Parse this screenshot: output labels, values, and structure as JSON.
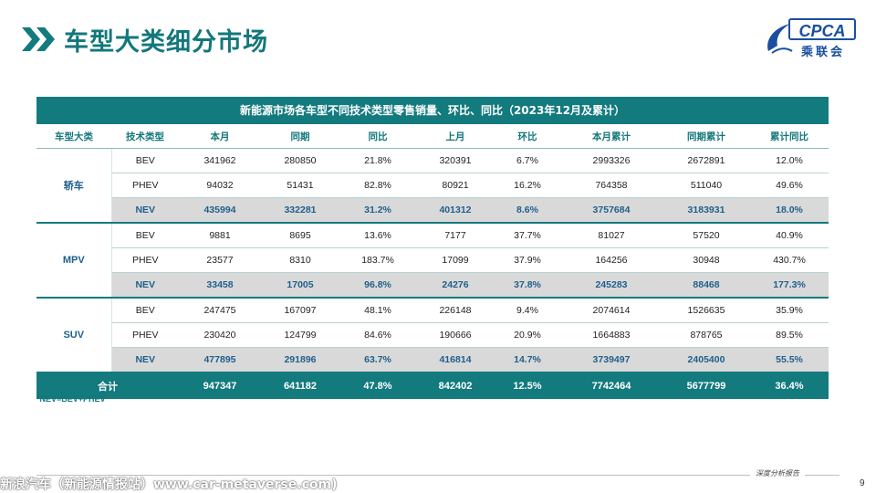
{
  "page": {
    "title": "车型大类细分市场",
    "logo_text": "CPCA",
    "logo_cn": "乘联会",
    "page_number": "9",
    "report_label": "深度分析报告",
    "watermark": "新浪汽车（新能源情报站）www.car-metaverse.com)",
    "footnote": "*NEV=BEV+PHEV"
  },
  "table": {
    "caption": "新能源市场各车型不同技术类型零售销量、环比、同比（2023年12月及累计）",
    "headers": [
      "车型大类",
      "技术类型",
      "本月",
      "同期",
      "同比",
      "上月",
      "环比",
      "本月累计",
      "同期累计",
      "累计同比"
    ],
    "groups": [
      {
        "name": "轿车",
        "rows": [
          {
            "type": "BEV",
            "cur": "341962",
            "prev_year": "280850",
            "yoy": "21.8%",
            "last_month": "320391",
            "mom": "6.7%",
            "ytd": "2993326",
            "prev_ytd": "2672891",
            "ytd_yoy": "12.0%"
          },
          {
            "type": "PHEV",
            "cur": "94032",
            "prev_year": "51431",
            "yoy": "82.8%",
            "last_month": "80921",
            "mom": "16.2%",
            "ytd": "764358",
            "prev_ytd": "511040",
            "ytd_yoy": "49.6%"
          },
          {
            "type": "NEV",
            "cur": "435994",
            "prev_year": "332281",
            "yoy": "31.2%",
            "last_month": "401312",
            "mom": "8.6%",
            "ytd": "3757684",
            "prev_ytd": "3183931",
            "ytd_yoy": "18.0%"
          }
        ]
      },
      {
        "name": "MPV",
        "rows": [
          {
            "type": "BEV",
            "cur": "9881",
            "prev_year": "8695",
            "yoy": "13.6%",
            "last_month": "7177",
            "mom": "37.7%",
            "ytd": "81027",
            "prev_ytd": "57520",
            "ytd_yoy": "40.9%"
          },
          {
            "type": "PHEV",
            "cur": "23577",
            "prev_year": "8310",
            "yoy": "183.7%",
            "last_month": "17099",
            "mom": "37.9%",
            "ytd": "164256",
            "prev_ytd": "30948",
            "ytd_yoy": "430.7%"
          },
          {
            "type": "NEV",
            "cur": "33458",
            "prev_year": "17005",
            "yoy": "96.8%",
            "last_month": "24276",
            "mom": "37.8%",
            "ytd": "245283",
            "prev_ytd": "88468",
            "ytd_yoy": "177.3%"
          }
        ]
      },
      {
        "name": "SUV",
        "rows": [
          {
            "type": "BEV",
            "cur": "247475",
            "prev_year": "167097",
            "yoy": "48.1%",
            "last_month": "226148",
            "mom": "9.4%",
            "ytd": "2074614",
            "prev_ytd": "1526635",
            "ytd_yoy": "35.9%"
          },
          {
            "type": "PHEV",
            "cur": "230420",
            "prev_year": "124799",
            "yoy": "84.6%",
            "last_month": "190666",
            "mom": "20.9%",
            "ytd": "1664883",
            "prev_ytd": "878765",
            "ytd_yoy": "89.5%"
          },
          {
            "type": "NEV",
            "cur": "477895",
            "prev_year": "291896",
            "yoy": "63.7%",
            "last_month": "416814",
            "mom": "14.7%",
            "ytd": "3739497",
            "prev_ytd": "2405400",
            "ytd_yoy": "55.5%"
          }
        ]
      }
    ],
    "total": {
      "label": "合计",
      "cur": "947347",
      "prev_year": "641182",
      "yoy": "47.8%",
      "last_month": "842402",
      "mom": "12.5%",
      "ytd": "7742464",
      "prev_ytd": "5677799",
      "ytd_yoy": "36.4%"
    }
  },
  "colors": {
    "accent": "#137a7e",
    "nev_text": "#1f5f8b",
    "nev_bg": "#d9d9d9",
    "logo": "#1a4fa0"
  },
  "icons": {
    "title_marker": "double-chevron-right-icon",
    "logo_mark": "cpca-swirl-icon"
  }
}
